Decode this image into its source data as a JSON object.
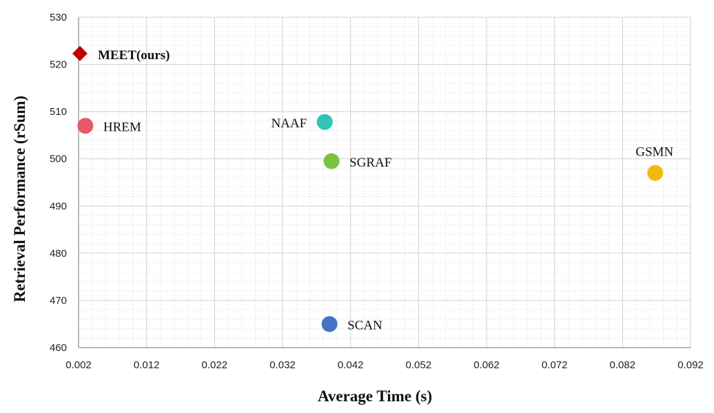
{
  "chart_data": {
    "type": "scatter",
    "xlabel": "Average Time (s)",
    "ylabel": "Retrieval Performance (rSum)",
    "xlim": [
      0.002,
      0.092
    ],
    "ylim": [
      460,
      530
    ],
    "xticks": [
      "0.002",
      "0.012",
      "0.022",
      "0.032",
      "0.042",
      "0.052",
      "0.062",
      "0.072",
      "0.082",
      "0.092"
    ],
    "yticks": [
      "460",
      "470",
      "480",
      "490",
      "500",
      "510",
      "520",
      "530"
    ],
    "grid": true,
    "points": [
      {
        "name": "MEET(ours)",
        "x": 0.0022,
        "y": 522.3,
        "marker": "diamond",
        "color": "#C00000",
        "label_bold": true,
        "label_side": "right"
      },
      {
        "name": "HREM",
        "x": 0.003,
        "y": 507.0,
        "marker": "circle",
        "color": "#E8566A",
        "label_bold": false,
        "label_side": "right"
      },
      {
        "name": "NAAF",
        "x": 0.0382,
        "y": 507.8,
        "marker": "circle",
        "color": "#2EC4B6",
        "label_bold": false,
        "label_side": "left"
      },
      {
        "name": "SGRAF",
        "x": 0.0392,
        "y": 499.5,
        "marker": "circle",
        "color": "#7DC143",
        "label_bold": false,
        "label_side": "right"
      },
      {
        "name": "GSMN",
        "x": 0.0868,
        "y": 497.0,
        "marker": "circle",
        "color": "#F2B90F",
        "label_bold": false,
        "label_side": "above"
      },
      {
        "name": "SCAN",
        "x": 0.0389,
        "y": 465.0,
        "marker": "circle",
        "color": "#4472C4",
        "label_bold": false,
        "label_side": "right"
      }
    ]
  }
}
